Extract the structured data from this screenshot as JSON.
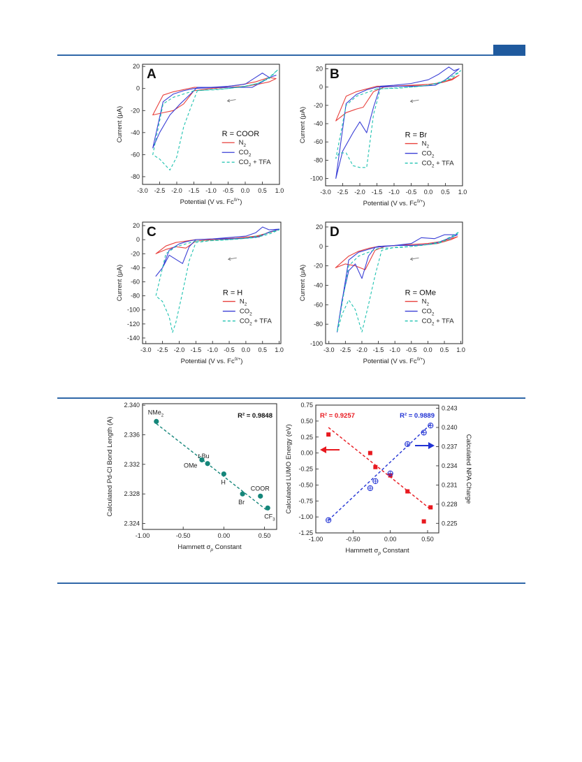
{
  "header": {
    "accent_color": "#2f67a8"
  },
  "legend": {
    "n2": "N",
    "co2": "CO",
    "co2tfa_a": "CO",
    "co2tfa_b": " + TFA",
    "sub2": "2"
  },
  "colors": {
    "n2": "#e8403c",
    "co2": "#3a3fd6",
    "co2tfa": "#1fc2b0",
    "teal": "#15867a",
    "red": "#e8191f",
    "blue": "#2233d4"
  },
  "chart_data": [
    {
      "id": "A",
      "type": "line",
      "panel_label": "A",
      "r_label": "R = COOR",
      "xlabel_main": "Potential (V vs. Fc",
      "xlabel_sup": "0/+",
      "xlabel_end": ")",
      "ylabel": "Current (μA)",
      "xlim": [
        -3.0,
        1.0
      ],
      "ylim": [
        -87,
        22
      ],
      "xticks": [
        "-3.0",
        "-2.5",
        "-2.0",
        "-1.5",
        "-1.0",
        "-0.5",
        "0.0",
        "0.5",
        "1.0"
      ],
      "yticks": [
        "20",
        "0",
        "-20",
        "-40",
        "-60",
        "-80"
      ],
      "series": [
        {
          "name": "N2",
          "x": [
            -1.5,
            -1.8,
            -2.1,
            -2.4,
            -2.7,
            -2.4,
            -2.1,
            -1.8,
            -1.5,
            -1.0,
            -0.5,
            0.0,
            0.4,
            0.7,
            0.9,
            0.7,
            0.3,
            -0.2,
            -0.8,
            -1.5
          ],
          "y": [
            1,
            -1,
            -3,
            -6,
            -24,
            -22,
            -20,
            -14,
            -2,
            0,
            1,
            2,
            4,
            6,
            9,
            10,
            6,
            3,
            1,
            1
          ]
        },
        {
          "name": "CO2",
          "x": [
            -1.5,
            -1.8,
            -2.1,
            -2.4,
            -2.7,
            -2.5,
            -2.2,
            -1.9,
            -1.6,
            -1.4,
            -1.0,
            -0.5,
            0.0,
            0.3,
            0.5,
            0.7,
            0.9,
            0.7,
            0.5,
            0.2,
            -0.3,
            -0.8,
            -1.5
          ],
          "y": [
            0,
            -2,
            -5,
            -12,
            -54,
            -40,
            -24,
            -14,
            -5,
            1,
            1,
            2,
            4,
            10,
            14,
            10,
            12,
            10,
            6,
            1,
            1,
            1,
            0
          ]
        },
        {
          "name": "CO2 + TFA",
          "x": [
            -1.5,
            -1.8,
            -2.1,
            -2.4,
            -2.7,
            -2.5,
            -2.2,
            -2.0,
            -1.8,
            -1.6,
            -1.4,
            -1.0,
            -0.5,
            0.0,
            0.4,
            0.7,
            0.95,
            0.7,
            0.3,
            -0.2,
            -0.8,
            -1.5
          ],
          "y": [
            -2,
            -5,
            -8,
            -14,
            -60,
            -64,
            -74,
            -62,
            -35,
            -18,
            -2,
            -1,
            0,
            2,
            5,
            10,
            17,
            9,
            4,
            1,
            -1,
            -2
          ]
        }
      ]
    },
    {
      "id": "B",
      "type": "line",
      "panel_label": "B",
      "r_label": "R = Br",
      "xlabel_main": "Potential (V vs. Fc",
      "xlabel_sup": "0/+",
      "xlabel_end": ")",
      "ylabel": "Current (μA)",
      "xlim": [
        -3.0,
        1.0
      ],
      "ylim": [
        -108,
        25
      ],
      "xticks": [
        "-3.0",
        "-2.5",
        "-2.0",
        "-1.5",
        "-1.0",
        "-0.5",
        "0.0",
        "0.5",
        "1.0"
      ],
      "yticks": [
        "20",
        "0",
        "-20",
        "-40",
        "-60",
        "-80",
        "-100"
      ],
      "series": [
        {
          "name": "N2",
          "x": [
            -1.5,
            -1.8,
            -2.1,
            -2.4,
            -2.7,
            -2.4,
            -2.1,
            -1.9,
            -1.6,
            -1.3,
            -1.0,
            -0.5,
            0.0,
            0.4,
            0.7,
            0.9,
            0.7,
            0.3,
            -0.3,
            -0.9,
            -1.5
          ],
          "y": [
            1,
            -2,
            -5,
            -10,
            -37,
            -28,
            -24,
            -22,
            -5,
            0,
            1,
            2,
            3,
            5,
            8,
            13,
            9,
            4,
            2,
            1,
            1
          ]
        },
        {
          "name": "CO2",
          "x": [
            -1.5,
            -1.8,
            -2.1,
            -2.4,
            -2.7,
            -2.5,
            -2.2,
            -2.0,
            -1.8,
            -1.6,
            -1.4,
            -1.0,
            -0.5,
            0.0,
            0.3,
            0.6,
            0.75,
            0.9,
            0.7,
            0.5,
            0.2,
            -0.3,
            -0.9,
            -1.5
          ],
          "y": [
            0,
            -3,
            -8,
            -18,
            -100,
            -70,
            -50,
            -38,
            -50,
            -22,
            1,
            2,
            4,
            8,
            14,
            22,
            18,
            20,
            14,
            8,
            2,
            1,
            1,
            0
          ]
        },
        {
          "name": "CO2 + TFA",
          "x": [
            -1.5,
            -1.8,
            -2.1,
            -2.4,
            -2.7,
            -2.6,
            -2.4,
            -2.2,
            -2.0,
            -1.8,
            -1.6,
            -1.4,
            -1.0,
            -0.5,
            0.0,
            0.4,
            0.7,
            0.95,
            0.7,
            0.3,
            -0.2,
            -0.8,
            -1.5
          ],
          "y": [
            -2,
            -6,
            -10,
            -20,
            -78,
            -72,
            -72,
            -86,
            -88,
            -88,
            -30,
            -2,
            -1,
            0,
            2,
            6,
            12,
            18,
            10,
            4,
            1,
            -1,
            -2
          ]
        }
      ]
    },
    {
      "id": "C",
      "type": "line",
      "panel_label": "C",
      "r_label": "R = H",
      "xlabel_main": "Potential (V vs. Fc",
      "xlabel_sup": "0/+",
      "xlabel_end": ")",
      "ylabel": "Current (μA)",
      "xlim": [
        -3.1,
        1.05
      ],
      "ylim": [
        -148,
        25
      ],
      "xticks": [
        "-3.0",
        "-2.5",
        "-2.0",
        "-1.5",
        "-1.0",
        "-0.5",
        "0.0",
        "0.5",
        "1.0"
      ],
      "yticks": [
        "20",
        "0",
        "-20",
        "-40",
        "-60",
        "-80",
        "-100",
        "-120",
        "-140"
      ],
      "series": [
        {
          "name": "N2",
          "x": [
            -1.5,
            -1.8,
            -2.1,
            -2.4,
            -2.7,
            -2.4,
            -2.1,
            -1.8,
            -1.5,
            -1.0,
            -0.5,
            0.0,
            0.4,
            0.6,
            0.8,
            1.0,
            0.7,
            0.3,
            -0.3,
            -0.9,
            -1.5
          ],
          "y": [
            0,
            -2,
            -4,
            -9,
            -20,
            -14,
            -10,
            -12,
            -2,
            0,
            1,
            2,
            5,
            9,
            12,
            15,
            10,
            5,
            2,
            1,
            0
          ]
        },
        {
          "name": "CO2",
          "x": [
            -1.5,
            -1.8,
            -2.0,
            -2.3,
            -2.5,
            -2.7,
            -2.5,
            -2.3,
            -2.1,
            -1.9,
            -1.7,
            -1.5,
            -1.0,
            -0.5,
            0.0,
            0.3,
            0.5,
            0.7,
            1.0,
            0.7,
            0.4,
            0.0,
            -0.5,
            -1.0,
            -1.5
          ],
          "y": [
            0,
            -3,
            -6,
            -15,
            -40,
            -52,
            -40,
            -22,
            -28,
            -34,
            -10,
            0,
            1,
            3,
            5,
            10,
            18,
            14,
            15,
            11,
            4,
            2,
            1,
            1,
            0
          ]
        },
        {
          "name": "CO2 + TFA",
          "x": [
            -1.5,
            -1.8,
            -2.1,
            -2.4,
            -2.7,
            -2.5,
            -2.3,
            -2.2,
            -2.1,
            -1.9,
            -1.7,
            -1.5,
            -1.0,
            -0.5,
            0.0,
            0.4,
            0.7,
            1.0,
            0.7,
            0.3,
            -0.2,
            -0.8,
            -1.5
          ],
          "y": [
            -2,
            -6,
            -10,
            -20,
            -80,
            -88,
            -110,
            -132,
            -118,
            -75,
            -30,
            -4,
            -1,
            0,
            2,
            6,
            10,
            14,
            8,
            3,
            1,
            -1,
            -2
          ]
        }
      ]
    },
    {
      "id": "D",
      "type": "line",
      "panel_label": "D",
      "r_label": "R = OMe",
      "xlabel_main": "Potential (V vs. Fc",
      "xlabel_sup": "0/+",
      "xlabel_end": ")",
      "ylabel": "Current (μA)",
      "xlim": [
        -3.1,
        1.05
      ],
      "ylim": [
        -100,
        25
      ],
      "xticks": [
        "-3.0",
        "-2.5",
        "-2.0",
        "-1.5",
        "-1.0",
        "-0.5",
        "0.0",
        "0.5",
        "1.0"
      ],
      "yticks": [
        "20",
        "0",
        "-20",
        "-40",
        "-60",
        "-80",
        "-100"
      ],
      "series": [
        {
          "name": "N2",
          "x": [
            -1.5,
            -1.8,
            -2.1,
            -2.4,
            -2.8,
            -2.5,
            -2.2,
            -1.9,
            -1.6,
            -1.3,
            -1.0,
            -0.5,
            0.0,
            0.4,
            0.7,
            0.9,
            0.7,
            0.3,
            -0.3,
            -0.9,
            -1.5
          ],
          "y": [
            0,
            -2,
            -5,
            -10,
            -22,
            -18,
            -20,
            -24,
            -4,
            0,
            1,
            2,
            3,
            5,
            8,
            10,
            7,
            3,
            1,
            1,
            0
          ]
        },
        {
          "name": "CO2",
          "x": [
            -1.5,
            -1.8,
            -2.1,
            -2.4,
            -2.75,
            -2.6,
            -2.4,
            -2.2,
            -2.0,
            -1.8,
            -1.6,
            -1.0,
            -0.5,
            -0.2,
            0.2,
            0.5,
            0.9,
            0.6,
            0.3,
            0.0,
            -0.5,
            -1.0,
            -1.5
          ],
          "y": [
            0,
            -3,
            -6,
            -14,
            -88,
            -55,
            -25,
            -18,
            -33,
            -10,
            -1,
            1,
            3,
            9,
            8,
            12,
            12,
            8,
            4,
            2,
            1,
            1,
            0
          ]
        },
        {
          "name": "CO2 + TFA",
          "x": [
            -1.5,
            -1.8,
            -2.1,
            -2.4,
            -2.75,
            -2.6,
            -2.4,
            -2.2,
            -2.0,
            -1.8,
            -1.6,
            -1.4,
            -1.0,
            -0.5,
            0.0,
            0.4,
            0.7,
            0.95,
            0.7,
            0.3,
            -0.2,
            -0.8,
            -1.5
          ],
          "y": [
            -2,
            -6,
            -10,
            -20,
            -88,
            -70,
            -55,
            -65,
            -88,
            -60,
            -30,
            -4,
            -1,
            0,
            2,
            5,
            10,
            15,
            8,
            3,
            1,
            -1,
            -2
          ]
        }
      ]
    },
    {
      "id": "E",
      "type": "scatter",
      "xlabel": "Hammett σ",
      "xlabel_sub": "p",
      "xlabel_end": " Constant",
      "ylabel": "Calculated Pd-Cl Bond Length (A)",
      "xlim": [
        -1.0,
        0.65
      ],
      "ylim": [
        2.3232,
        2.3402
      ],
      "xticks": [
        "-1.00",
        "-0.50",
        "0.00",
        "0.50"
      ],
      "yticks": [
        "2.340",
        "2.336",
        "2.332",
        "2.328",
        "2.324"
      ],
      "r2": "R² = 0.9848",
      "points": [
        {
          "label": "NMe",
          "label_sub": "2",
          "x": -0.83,
          "y": 2.3378
        },
        {
          "label": "t-Bu",
          "label_sub": "",
          "x": -0.2,
          "y": 2.3321
        },
        {
          "label": "OMe",
          "label_sub": "",
          "x": -0.27,
          "y": 2.3326
        },
        {
          "label": "H",
          "label_sub": "",
          "x": 0.0,
          "y": 2.3307
        },
        {
          "label": "Br",
          "label_sub": "",
          "x": 0.23,
          "y": 2.328
        },
        {
          "label": "COOR",
          "label_sub": "",
          "x": 0.45,
          "y": 2.3277
        },
        {
          "label": "CF",
          "label_sub": "3",
          "x": 0.54,
          "y": 2.3261
        }
      ],
      "fit": {
        "x": [
          -0.83,
          0.54
        ],
        "y": [
          2.3375,
          2.3257
        ]
      }
    },
    {
      "id": "F",
      "type": "scatter",
      "xlabel": "Hammett σ",
      "xlabel_sub": "p",
      "xlabel_end": " Constant",
      "ylabel_left": "Calculated LUMO Energy (eV)",
      "ylabel_right": "Calculated NPA Charge",
      "xlim": [
        -1.0,
        0.65
      ],
      "ylim_left": [
        -1.25,
        0.75
      ],
      "ylim_right": [
        0.2235,
        0.2435
      ],
      "xticks": [
        "-1.00",
        "-0.50",
        "0.00",
        "0.50"
      ],
      "yticks_left": [
        "0.75",
        "0.50",
        "0.25",
        "0.00",
        "-0.25",
        "-0.50",
        "-0.75",
        "-1.00",
        "-1.25"
      ],
      "yticks_right": [
        "0.243",
        "0.240",
        "0.237",
        "0.234",
        "0.231",
        "0.228",
        "0.225"
      ],
      "r2_left": "R² = 0.9257",
      "r2_right": "R² = 0.9889",
      "series": [
        {
          "name": "LUMO",
          "x": [
            -0.83,
            -0.27,
            -0.2,
            0.0,
            0.23,
            0.45,
            0.54
          ],
          "y": [
            0.29,
            0.0,
            -0.22,
            -0.35,
            -0.6,
            -1.07,
            -0.85
          ]
        },
        {
          "name": "NPA",
          "x": [
            -0.83,
            -0.27,
            -0.2,
            0.0,
            0.23,
            0.45,
            0.54
          ],
          "y": [
            0.2255,
            0.2305,
            0.2316,
            0.2328,
            0.2374,
            0.2392,
            0.2403
          ]
        }
      ],
      "fit_left": {
        "x": [
          -0.83,
          0.54
        ],
        "y": [
          0.4,
          -0.88
        ]
      },
      "fit_right": {
        "x": [
          -0.83,
          0.54
        ],
        "y": [
          0.2255,
          0.2405
        ]
      }
    }
  ]
}
